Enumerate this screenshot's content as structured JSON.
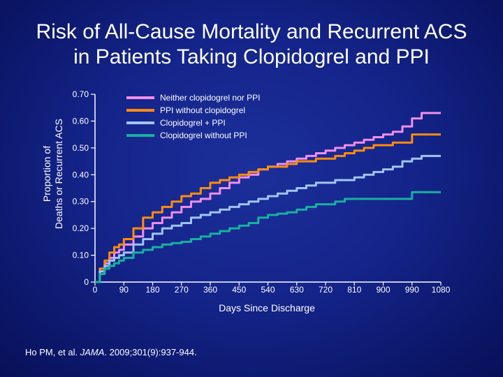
{
  "title": {
    "line1": "Risk of All-Cause Mortality and Recurrent ACS",
    "line2": "in Patients Taking Clopidogrel and PPI"
  },
  "citation": {
    "authors": "Ho PM, et al. ",
    "journal": "JAMA",
    "details": ". 2009;301(9):937-944."
  },
  "chart_data": {
    "type": "line",
    "xlabel": "Days Since Discharge",
    "ylabel": [
      "Proportion of",
      "Deaths or Recurrent ACS"
    ],
    "xlim": [
      0,
      1080
    ],
    "ylim": [
      0,
      0.7
    ],
    "x_ticks": [
      0,
      90,
      180,
      270,
      360,
      450,
      540,
      630,
      720,
      810,
      900,
      990,
      1080
    ],
    "x_tick_labels": [
      "0",
      "90",
      "180",
      "270",
      "360",
      "450",
      "540",
      "630",
      "720",
      "810",
      "900",
      "990",
      "1080"
    ],
    "y_ticks": [
      0,
      0.1,
      0.2,
      0.3,
      0.4,
      0.5,
      0.6,
      0.7
    ],
    "y_tick_labels": [
      "0",
      "0.10",
      "0.20",
      "0.30",
      "0.40",
      "0.50",
      "0.60",
      "0.70"
    ],
    "grid": false,
    "legend_position": "top-right",
    "series": [
      {
        "name": "Neither clopidogrel nor PPI",
        "color": "#f08ef0",
        "x": [
          0,
          15,
          30,
          45,
          60,
          75,
          90,
          120,
          150,
          180,
          210,
          240,
          270,
          300,
          330,
          360,
          390,
          420,
          450,
          480,
          510,
          540,
          570,
          600,
          630,
          660,
          690,
          720,
          750,
          780,
          810,
          840,
          870,
          900,
          930,
          960,
          990,
          1020,
          1050,
          1080
        ],
        "y": [
          0,
          0.04,
          0.07,
          0.09,
          0.11,
          0.12,
          0.14,
          0.17,
          0.2,
          0.22,
          0.24,
          0.26,
          0.28,
          0.3,
          0.31,
          0.33,
          0.35,
          0.37,
          0.39,
          0.4,
          0.42,
          0.43,
          0.44,
          0.45,
          0.46,
          0.47,
          0.48,
          0.49,
          0.5,
          0.51,
          0.52,
          0.53,
          0.54,
          0.55,
          0.56,
          0.58,
          0.61,
          0.63,
          0.63,
          0.63
        ]
      },
      {
        "name": "PPI without clopidogrel",
        "color": "#ff8c10",
        "x": [
          0,
          15,
          30,
          45,
          60,
          75,
          90,
          120,
          150,
          180,
          210,
          240,
          270,
          300,
          330,
          360,
          390,
          420,
          450,
          480,
          510,
          540,
          570,
          600,
          630,
          660,
          690,
          720,
          750,
          780,
          810,
          840,
          870,
          900,
          930,
          960,
          990,
          1020,
          1050,
          1080
        ],
        "y": [
          0,
          0.05,
          0.08,
          0.11,
          0.13,
          0.14,
          0.16,
          0.2,
          0.24,
          0.26,
          0.28,
          0.3,
          0.32,
          0.33,
          0.35,
          0.37,
          0.38,
          0.39,
          0.4,
          0.41,
          0.42,
          0.43,
          0.43,
          0.44,
          0.45,
          0.45,
          0.46,
          0.46,
          0.47,
          0.48,
          0.49,
          0.5,
          0.51,
          0.51,
          0.52,
          0.52,
          0.55,
          0.55,
          0.55,
          0.55
        ]
      },
      {
        "name": "Clopidogrel + PPI",
        "color": "#a0c4f8",
        "x": [
          0,
          15,
          30,
          45,
          60,
          75,
          90,
          120,
          150,
          180,
          210,
          240,
          270,
          300,
          330,
          360,
          390,
          420,
          450,
          480,
          510,
          540,
          570,
          600,
          630,
          660,
          690,
          720,
          750,
          780,
          810,
          840,
          870,
          900,
          930,
          960,
          990,
          1020,
          1050,
          1080
        ],
        "y": [
          0,
          0.04,
          0.06,
          0.08,
          0.09,
          0.1,
          0.11,
          0.14,
          0.16,
          0.18,
          0.2,
          0.21,
          0.22,
          0.24,
          0.25,
          0.26,
          0.27,
          0.28,
          0.29,
          0.3,
          0.31,
          0.32,
          0.33,
          0.34,
          0.35,
          0.36,
          0.37,
          0.37,
          0.38,
          0.38,
          0.39,
          0.4,
          0.41,
          0.42,
          0.43,
          0.45,
          0.46,
          0.47,
          0.47,
          0.47
        ]
      },
      {
        "name": "Clopidogrel without PPI",
        "color": "#18b0a0",
        "x": [
          0,
          15,
          30,
          45,
          60,
          75,
          90,
          120,
          150,
          180,
          210,
          240,
          270,
          300,
          330,
          360,
          390,
          420,
          450,
          480,
          510,
          540,
          570,
          600,
          630,
          660,
          690,
          720,
          750,
          780,
          810,
          840,
          870,
          900,
          930,
          960,
          990,
          1020,
          1050,
          1080
        ],
        "y": [
          0,
          0.03,
          0.05,
          0.06,
          0.07,
          0.08,
          0.09,
          0.11,
          0.12,
          0.13,
          0.14,
          0.145,
          0.15,
          0.16,
          0.17,
          0.18,
          0.19,
          0.2,
          0.21,
          0.22,
          0.24,
          0.25,
          0.255,
          0.26,
          0.27,
          0.28,
          0.29,
          0.29,
          0.3,
          0.31,
          0.31,
          0.31,
          0.31,
          0.31,
          0.31,
          0.31,
          0.335,
          0.335,
          0.335,
          0.335
        ]
      }
    ]
  }
}
